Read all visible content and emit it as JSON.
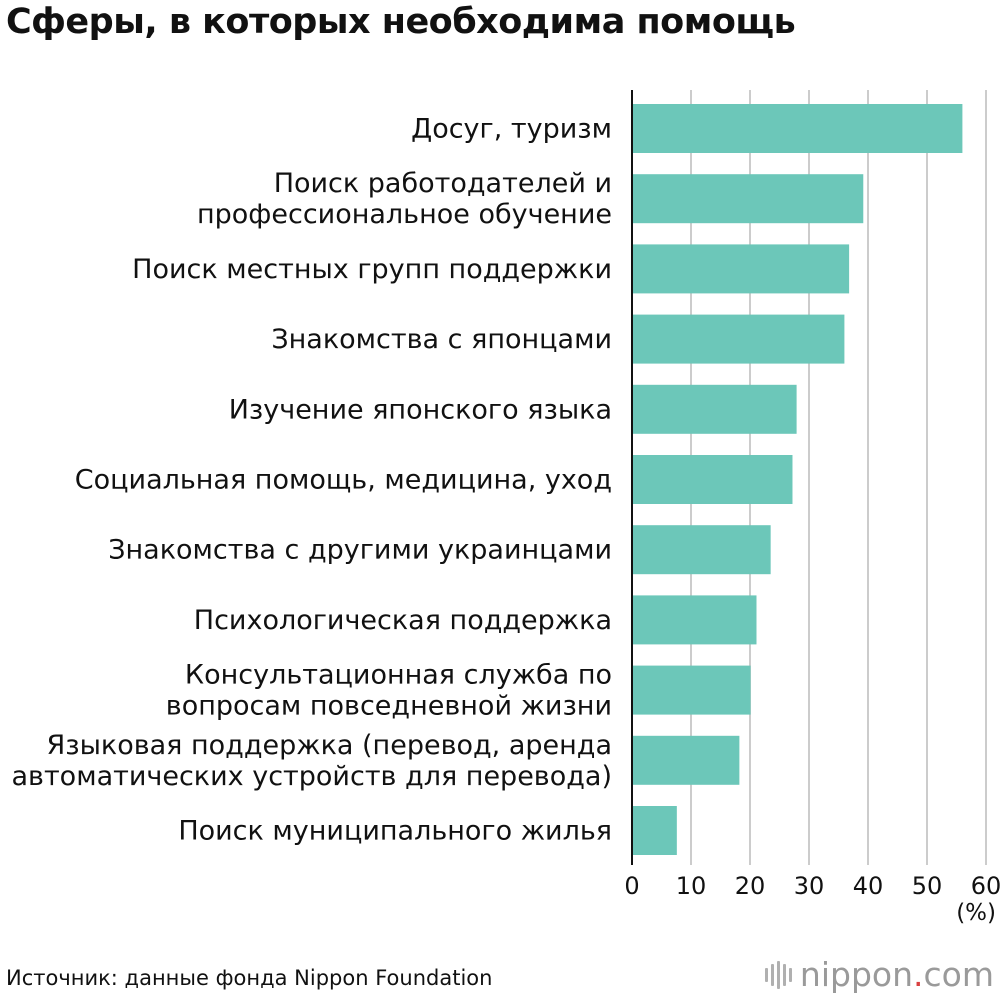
{
  "title": "Сферы, в которых необходима помощь",
  "unit_label": "(%)",
  "source": "Источник: данные фонда Nippon Foundation",
  "brand": {
    "name": "nippon",
    "dot": ".",
    "tld": "com",
    "icon": "nippon-logo-icon"
  },
  "colors": {
    "bar": "#6cc7b9",
    "grid": "#cccccc",
    "axis": "#111111"
  },
  "chart_data": {
    "type": "bar",
    "orientation": "horizontal",
    "title": "Сферы, в которых необходима помощь",
    "xlabel": "(%)",
    "ylabel": "",
    "xlim": [
      0,
      60
    ],
    "xticks": [
      0,
      10,
      20,
      30,
      40,
      50,
      60
    ],
    "grid": true,
    "categories": [
      [
        "Досуг, туризм"
      ],
      [
        "Поиск работодателей и",
        "профессиональное обучение"
      ],
      [
        "Поиск местных групп поддержки"
      ],
      [
        "Знакомства с японцами"
      ],
      [
        "Изучение японского языка"
      ],
      [
        "Социальная помощь, медицина, уход"
      ],
      [
        "Знакомства с другими украинцами"
      ],
      [
        "Психологическая поддержка"
      ],
      [
        "Консультационная служба по",
        "вопросам повседневной жизни"
      ],
      [
        "Языковая поддержка (перевод, аренда",
        "автоматических устройств для перевода)"
      ],
      [
        "Поиск муниципального жилья"
      ]
    ],
    "values": [
      56.0,
      39.2,
      36.8,
      36.0,
      27.9,
      27.2,
      23.5,
      21.1,
      20.1,
      18.2,
      7.6
    ]
  }
}
